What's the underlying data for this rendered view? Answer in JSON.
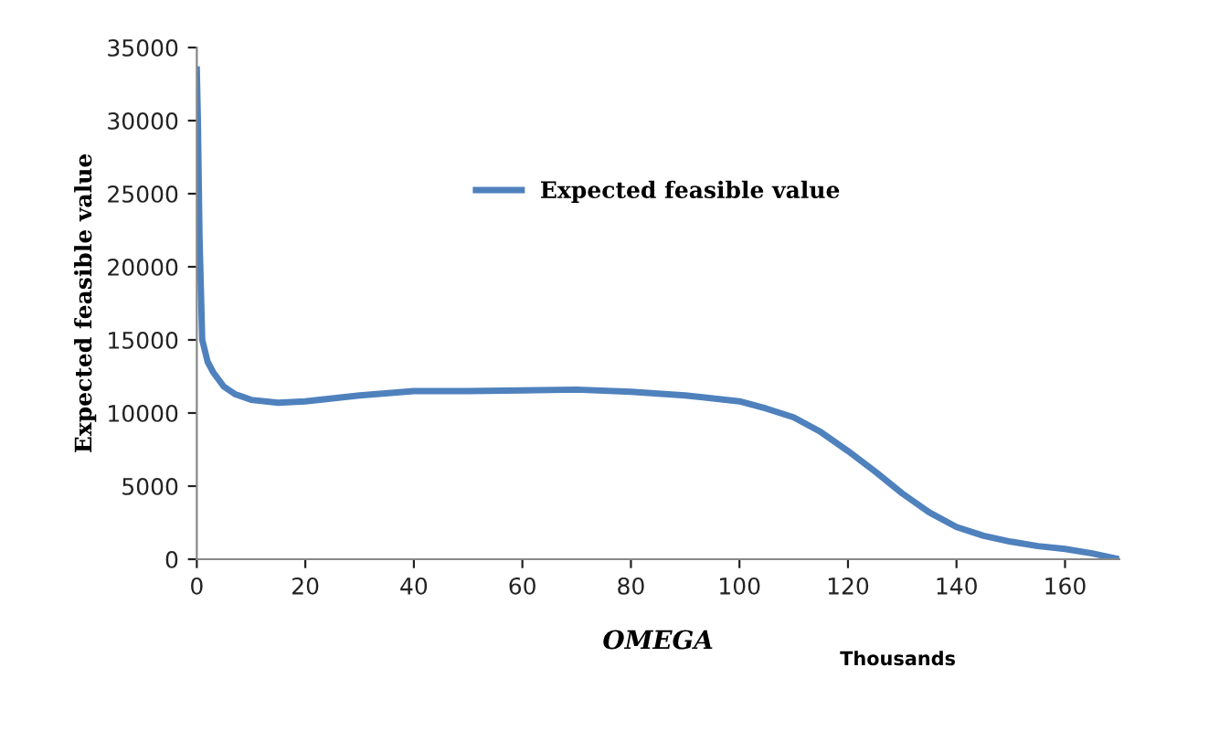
{
  "chart_data": {
    "type": "line",
    "xlabel": "OMEGA",
    "ylabel": "Expected feasible value",
    "annotations": [
      "Thousands"
    ],
    "x": [
      0,
      0.2,
      0.5,
      1,
      2,
      3,
      5,
      7,
      10,
      15,
      20,
      30,
      40,
      50,
      60,
      70,
      80,
      90,
      100,
      105,
      110,
      115,
      120,
      125,
      130,
      135,
      140,
      145,
      150,
      155,
      160,
      165,
      170
    ],
    "series": [
      {
        "name": "Expected feasible value",
        "color": "#4f81bd",
        "values": [
          33500,
          30000,
          22000,
          15000,
          13500,
          12800,
          11800,
          11300,
          10900,
          10700,
          10800,
          11200,
          11500,
          11500,
          11550,
          11600,
          11450,
          11200,
          10800,
          10300,
          9700,
          8700,
          7400,
          6000,
          4500,
          3200,
          2200,
          1600,
          1200,
          900,
          700,
          400,
          0
        ]
      }
    ],
    "xlim": [
      0,
      170
    ],
    "ylim": [
      0,
      35000
    ],
    "xticks": [
      0,
      20,
      40,
      60,
      80,
      100,
      120,
      140,
      160
    ],
    "yticks": [
      0,
      5000,
      10000,
      15000,
      20000,
      25000,
      30000,
      35000
    ],
    "grid": false,
    "legend": "top",
    "marker": "none",
    "line_style": "solid"
  }
}
